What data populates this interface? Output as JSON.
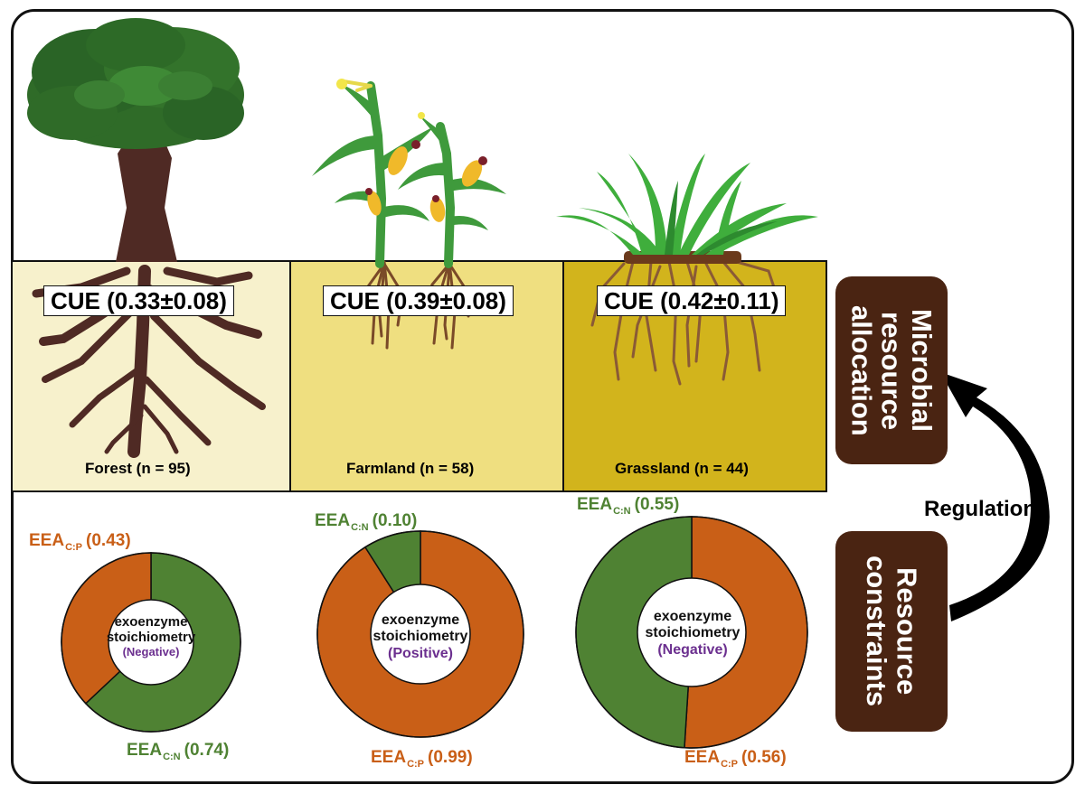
{
  "panels": [
    {
      "ecosystem": "Forest (n = 95)",
      "cue": "CUE (0.33±0.08)",
      "soil_color": "#f7f1cc",
      "donut": {
        "center_lines": [
          "exoenzyme",
          "stoichiometry"
        ],
        "sign": "(Negative)",
        "eea_cp": {
          "label": "EEA",
          "sub": "C:P",
          "value": "(0.43)"
        },
        "eea_cn": {
          "label": "EEA",
          "sub": "C:N",
          "value": "(0.74)"
        },
        "orange_fraction": 0.37
      }
    },
    {
      "ecosystem": "Farmland (n = 58)",
      "cue": "CUE (0.39±0.08)",
      "soil_color": "#efdf80",
      "donut": {
        "center_lines": [
          "exoenzyme",
          "stoichiometry"
        ],
        "sign": "(Positive)",
        "eea_cn": {
          "label": "EEA",
          "sub": "C:N",
          "value": "(0.10)"
        },
        "eea_cp": {
          "label": "EEA",
          "sub": "C:P",
          "value": "(0.99)"
        },
        "green_fraction": 0.09
      }
    },
    {
      "ecosystem": "Grassland (n = 44)",
      "cue": "CUE (0.42±0.11)",
      "soil_color": "#d2b41c",
      "donut": {
        "center_lines": [
          "exoenzyme",
          "stoichiometry"
        ],
        "sign": "(Negative)",
        "eea_cn": {
          "label": "EEA",
          "sub": "C:N",
          "value": "(0.55)"
        },
        "eea_cp": {
          "label": "EEA",
          "sub": "C:P",
          "value": "(0.56)"
        },
        "orange_fraction": 0.51
      }
    }
  ],
  "side": {
    "top_box": "Microbial resource allocation",
    "bottom_box": "Resource constraints",
    "arrow_label": "Regulation"
  },
  "colors": {
    "green": "#4f8233",
    "orange": "#c95f17",
    "box_brown": "#4a2412",
    "sign_purple": "#6b2f8f",
    "trunk": "#4f2a24",
    "canopy": "#2f6b28",
    "plant_green": "#3f9a3c",
    "cob": "#f0b92a",
    "root": "#7a4a28"
  }
}
